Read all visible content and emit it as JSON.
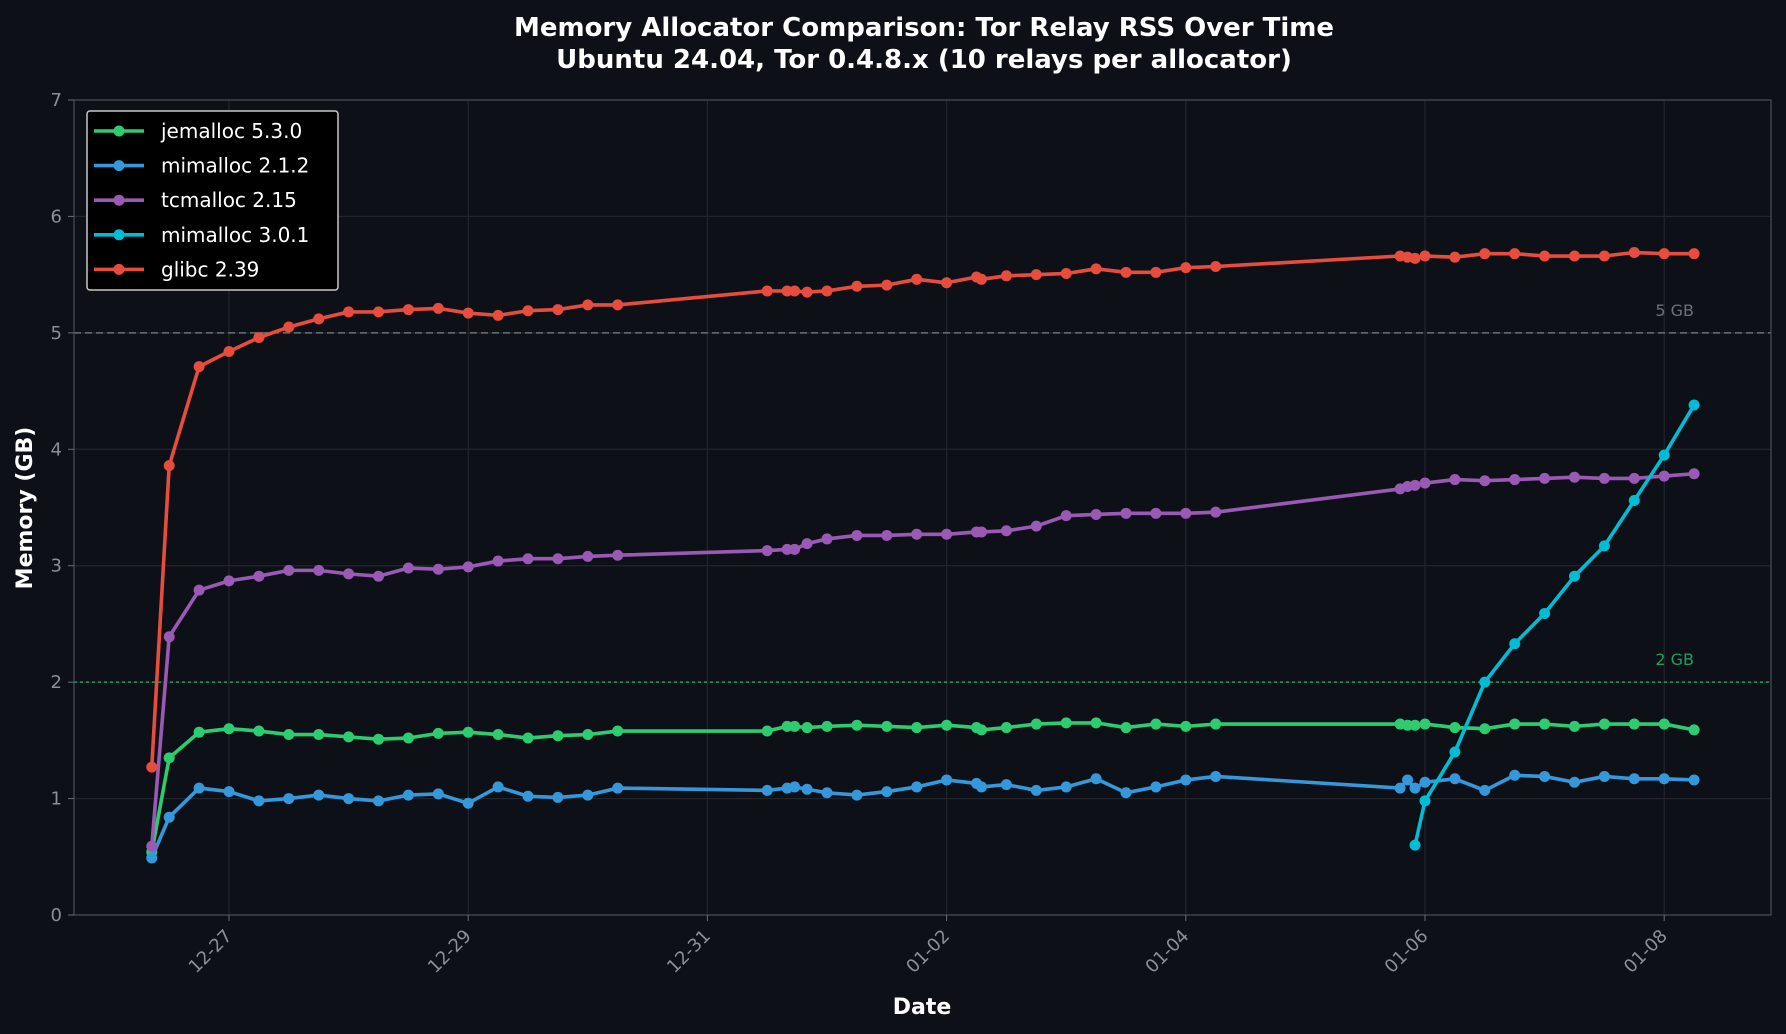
{
  "chart_data": {
    "type": "line",
    "title": "Memory Allocator Comparison: Tor Relay RSS Over Time",
    "subtitle": "Ubuntu 24.04, Tor 0.4.8.x (10 relays per allocator)",
    "xlabel": "Date",
    "ylabel": "Memory (GB)",
    "ylim": [
      0,
      7
    ],
    "yticks": [
      "0",
      "1",
      "2",
      "3",
      "4",
      "5",
      "6",
      "7"
    ],
    "xticks": [
      "12-27",
      "12-29",
      "12-31",
      "01-02",
      "01-04",
      "01-06",
      "01-08"
    ],
    "grid": true,
    "legend_position": "upper-left",
    "reference_lines": [
      {
        "value": 5,
        "label": "5 GB",
        "color": "#6b6f76",
        "style": "dashed"
      },
      {
        "value": 2,
        "label": "2 GB",
        "color": "#1f9d5f",
        "style": "dotted"
      }
    ],
    "x": [
      "12-26 08:30",
      "12-26 12:00",
      "12-26 18:00",
      "12-27 00:00",
      "12-27 06:00",
      "12-27 12:00",
      "12-27 18:00",
      "12-28 00:00",
      "12-28 06:00",
      "12-28 12:00",
      "12-28 18:00",
      "12-29 00:00",
      "12-29 06:00",
      "12-29 12:00",
      "12-29 18:00",
      "12-30 00:00",
      "12-30 06:00",
      "12-31 12:00",
      "12-31 16:00",
      "12-31 17:30",
      "12-31 20:00",
      "01-01 00:00",
      "01-01 06:00",
      "01-01 12:00",
      "01-01 18:00",
      "01-02 00:00",
      "01-02 06:00",
      "01-02 07:00",
      "01-02 12:00",
      "01-02 18:00",
      "01-03 00:00",
      "01-03 06:00",
      "01-03 12:00",
      "01-03 18:00",
      "01-04 00:00",
      "01-04 06:00",
      "01-05 19:00",
      "01-05 20:30",
      "01-05 22:00",
      "01-06 00:00",
      "01-06 06:00",
      "01-06 12:00",
      "01-06 18:00",
      "01-07 00:00",
      "01-07 06:00",
      "01-07 12:00",
      "01-07 18:00",
      "01-08 00:00",
      "01-08 06:00"
    ],
    "series": [
      {
        "name": "jemalloc 5.3.0",
        "color": "#2ecc71",
        "values": [
          0.54,
          1.35,
          1.57,
          1.6,
          1.58,
          1.55,
          1.55,
          1.53,
          1.51,
          1.52,
          1.56,
          1.57,
          1.55,
          1.52,
          1.54,
          1.55,
          1.58,
          1.58,
          1.62,
          1.62,
          1.61,
          1.62,
          1.63,
          1.62,
          1.61,
          1.63,
          1.61,
          1.59,
          1.61,
          1.64,
          1.65,
          1.65,
          1.61,
          1.64,
          1.62,
          1.64,
          1.64,
          1.63,
          1.63,
          1.64,
          1.61,
          1.6,
          1.64,
          1.64,
          1.62,
          1.64,
          1.64,
          1.64,
          1.59
        ]
      },
      {
        "name": "mimalloc 2.1.2",
        "color": "#3498db",
        "values": [
          0.49,
          0.84,
          1.09,
          1.06,
          0.98,
          1.0,
          1.03,
          1.0,
          0.98,
          1.03,
          1.04,
          0.96,
          1.1,
          1.02,
          1.01,
          1.03,
          1.09,
          1.07,
          1.09,
          1.1,
          1.08,
          1.05,
          1.03,
          1.06,
          1.1,
          1.16,
          1.13,
          1.1,
          1.12,
          1.07,
          1.1,
          1.17,
          1.05,
          1.1,
          1.16,
          1.19,
          1.09,
          1.16,
          1.09,
          1.14,
          1.17,
          1.07,
          1.2,
          1.19,
          1.14,
          1.19,
          1.17,
          1.17,
          1.16
        ]
      },
      {
        "name": "tcmalloc 2.15",
        "color": "#9b59b6",
        "values": [
          0.59,
          2.39,
          2.79,
          2.87,
          2.91,
          2.96,
          2.96,
          2.93,
          2.91,
          2.98,
          2.97,
          2.99,
          3.04,
          3.06,
          3.06,
          3.08,
          3.09,
          3.13,
          3.14,
          3.14,
          3.19,
          3.23,
          3.26,
          3.26,
          3.27,
          3.27,
          3.29,
          3.29,
          3.3,
          3.34,
          3.43,
          3.44,
          3.45,
          3.45,
          3.45,
          3.46,
          3.66,
          3.68,
          3.69,
          3.71,
          3.74,
          3.73,
          3.74,
          3.75,
          3.76,
          3.75,
          3.75,
          3.77,
          3.79
        ]
      },
      {
        "name": "mimalloc 3.0.1",
        "color": "#00bcd4",
        "values": [
          null,
          null,
          null,
          null,
          null,
          null,
          null,
          null,
          null,
          null,
          null,
          null,
          null,
          null,
          null,
          null,
          null,
          null,
          null,
          null,
          null,
          null,
          null,
          null,
          null,
          null,
          null,
          null,
          null,
          null,
          null,
          null,
          null,
          null,
          null,
          null,
          null,
          null,
          0.6,
          0.98,
          1.4,
          2.0,
          2.33,
          2.59,
          2.91,
          3.17,
          3.56,
          3.95,
          4.38
        ]
      },
      {
        "name": "glibc 2.39",
        "color": "#e74c3c",
        "values": [
          1.27,
          3.86,
          4.71,
          4.84,
          4.96,
          5.05,
          5.12,
          5.18,
          5.18,
          5.2,
          5.21,
          5.17,
          5.15,
          5.19,
          5.2,
          5.24,
          5.24,
          5.36,
          5.36,
          5.36,
          5.35,
          5.36,
          5.4,
          5.41,
          5.46,
          5.43,
          5.48,
          5.46,
          5.49,
          5.5,
          5.51,
          5.55,
          5.52,
          5.52,
          5.56,
          5.57,
          5.66,
          5.65,
          5.64,
          5.66,
          5.65,
          5.68,
          5.68,
          5.66,
          5.66,
          5.66,
          5.69,
          5.68,
          5.68
        ]
      }
    ]
  }
}
